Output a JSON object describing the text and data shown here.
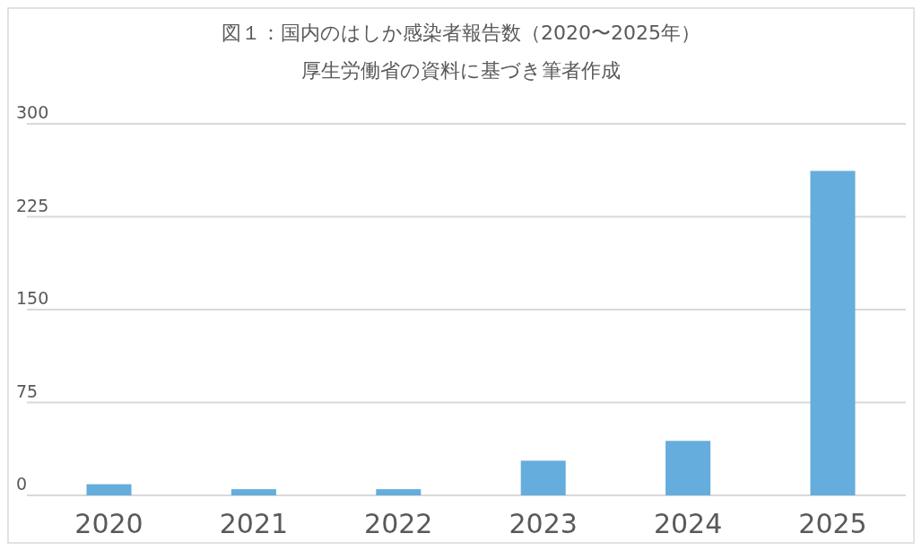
{
  "chart_data": {
    "type": "bar",
    "title": "図１：国内のはしか感染者報告数（2020〜2025年）",
    "subtitle": "厚生労働省の資料に基づき筆者作成",
    "categories": [
      "2020",
      "2021",
      "2022",
      "2023",
      "2024",
      "2025"
    ],
    "values": [
      9,
      5,
      5,
      28,
      44,
      262
    ],
    "color": "#65addd",
    "ylim": [
      0,
      300
    ],
    "yticks": [
      0,
      75,
      150,
      225,
      300
    ],
    "grid": "y"
  }
}
